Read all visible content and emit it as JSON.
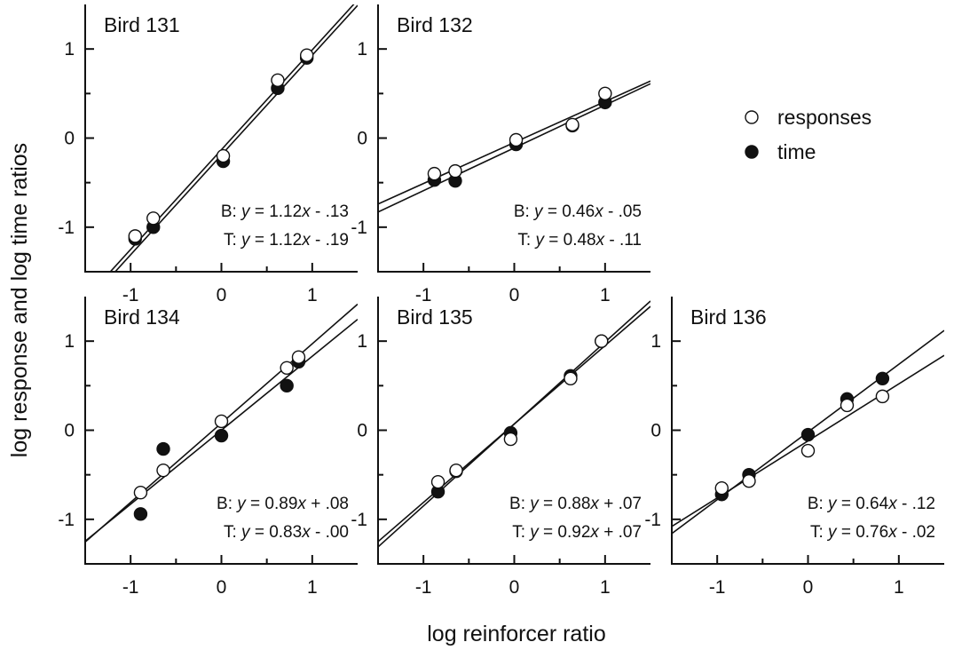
{
  "figure": {
    "ylabel": "log response and log time ratios",
    "xlabel": "log reinforcer ratio",
    "legend": [
      {
        "label": "responses",
        "marker": "open-circle"
      },
      {
        "label": "time",
        "marker": "filled-circle"
      }
    ],
    "legend_placement": "right of top row"
  },
  "chart_data": [
    {
      "type": "scatter",
      "title": "Bird 131",
      "xlim": [
        -1.5,
        1.5
      ],
      "ylim": [
        -1.5,
        1.5
      ],
      "xticks": [
        "-1",
        "0",
        "1"
      ],
      "yticks": [
        "1",
        "0",
        "-1"
      ],
      "series": [
        {
          "name": "responses",
          "x": [
            -0.95,
            -0.75,
            0.02,
            0.62,
            0.94
          ],
          "y": [
            -1.1,
            -0.9,
            -0.2,
            0.65,
            0.93
          ]
        },
        {
          "name": "time",
          "x": [
            -0.95,
            -0.75,
            0.02,
            0.62,
            0.94
          ],
          "y": [
            -1.13,
            -1.0,
            -0.26,
            0.56,
            0.9
          ]
        }
      ],
      "fits": [
        {
          "label": "B",
          "slope": 1.12,
          "intercept": -0.13,
          "text": "B: y = 1.12x - .13"
        },
        {
          "label": "T",
          "slope": 1.12,
          "intercept": -0.19,
          "text": "T: y = 1.12x - .19"
        }
      ]
    },
    {
      "type": "scatter",
      "title": "Bird 132",
      "xlim": [
        -1.5,
        1.5
      ],
      "ylim": [
        -1.5,
        1.5
      ],
      "xticks": [
        "-1",
        "0",
        "1"
      ],
      "yticks": [
        "1",
        "0",
        "-1"
      ],
      "series": [
        {
          "name": "responses",
          "x": [
            -0.88,
            -0.65,
            0.02,
            0.64,
            1.0
          ],
          "y": [
            -0.4,
            -0.37,
            -0.02,
            0.15,
            0.5
          ]
        },
        {
          "name": "time",
          "x": [
            -0.88,
            -0.65,
            0.02,
            0.64,
            1.0
          ],
          "y": [
            -0.47,
            -0.48,
            -0.07,
            0.14,
            0.4
          ]
        }
      ],
      "fits": [
        {
          "label": "B",
          "slope": 0.46,
          "intercept": -0.05,
          "text": "B: y = 0.46x - .05"
        },
        {
          "label": "T",
          "slope": 0.48,
          "intercept": -0.11,
          "text": "T: y = 0.48x - .11"
        }
      ]
    },
    {
      "type": "scatter",
      "title": "Bird 134",
      "xlim": [
        -1.5,
        1.5
      ],
      "ylim": [
        -1.5,
        1.5
      ],
      "xticks": [
        "-1",
        "0",
        "1"
      ],
      "yticks": [
        "1",
        "0",
        "-1"
      ],
      "series": [
        {
          "name": "responses",
          "x": [
            -0.89,
            -0.64,
            0.0,
            0.72,
            0.85
          ],
          "y": [
            -0.7,
            -0.45,
            0.1,
            0.7,
            0.82
          ]
        },
        {
          "name": "time",
          "x": [
            -0.89,
            -0.64,
            0.0,
            0.72,
            0.85
          ],
          "y": [
            -0.94,
            -0.21,
            -0.06,
            0.5,
            0.77
          ]
        }
      ],
      "fits": [
        {
          "label": "B",
          "slope": 0.89,
          "intercept": 0.08,
          "text": "B: y = 0.89x + .08"
        },
        {
          "label": "T",
          "slope": 0.83,
          "intercept": 0.0,
          "text": "T: y = 0.83x - .00"
        }
      ]
    },
    {
      "type": "scatter",
      "title": "Bird 135",
      "xlim": [
        -1.5,
        1.5
      ],
      "ylim": [
        -1.5,
        1.5
      ],
      "xticks": [
        "-1",
        "0",
        "1"
      ],
      "yticks": [
        "1",
        "0",
        "-1"
      ],
      "series": [
        {
          "name": "responses",
          "x": [
            -0.84,
            -0.64,
            -0.04,
            0.62,
            0.96
          ],
          "y": [
            -0.58,
            -0.45,
            -0.1,
            0.58,
            1.0
          ]
        },
        {
          "name": "time",
          "x": [
            -0.84,
            -0.64,
            -0.04,
            0.62,
            0.96
          ],
          "y": [
            -0.69,
            -0.46,
            -0.03,
            0.61,
            1.0
          ]
        }
      ],
      "fits": [
        {
          "label": "B",
          "slope": 0.88,
          "intercept": 0.07,
          "text": "B: y = 0.88x + .07"
        },
        {
          "label": "T",
          "slope": 0.92,
          "intercept": 0.07,
          "text": "T: y = 0.92x + .07"
        }
      ]
    },
    {
      "type": "scatter",
      "title": "Bird 136",
      "xlim": [
        -1.5,
        1.5
      ],
      "ylim": [
        -1.5,
        1.5
      ],
      "xticks": [
        "-1",
        "0",
        "1"
      ],
      "yticks": [
        "1",
        "0",
        "-1"
      ],
      "series": [
        {
          "name": "responses",
          "x": [
            -0.95,
            -0.65,
            0.0,
            0.43,
            0.82
          ],
          "y": [
            -0.65,
            -0.57,
            -0.23,
            0.28,
            0.38
          ]
        },
        {
          "name": "time",
          "x": [
            -0.95,
            -0.65,
            0.0,
            0.43,
            0.82
          ],
          "y": [
            -0.72,
            -0.5,
            -0.05,
            0.35,
            0.58
          ]
        }
      ],
      "fits": [
        {
          "label": "B",
          "slope": 0.64,
          "intercept": -0.12,
          "text": "B: y = 0.64x - .12"
        },
        {
          "label": "T",
          "slope": 0.76,
          "intercept": -0.02,
          "text": "T: y = 0.76x - .02"
        }
      ]
    }
  ]
}
